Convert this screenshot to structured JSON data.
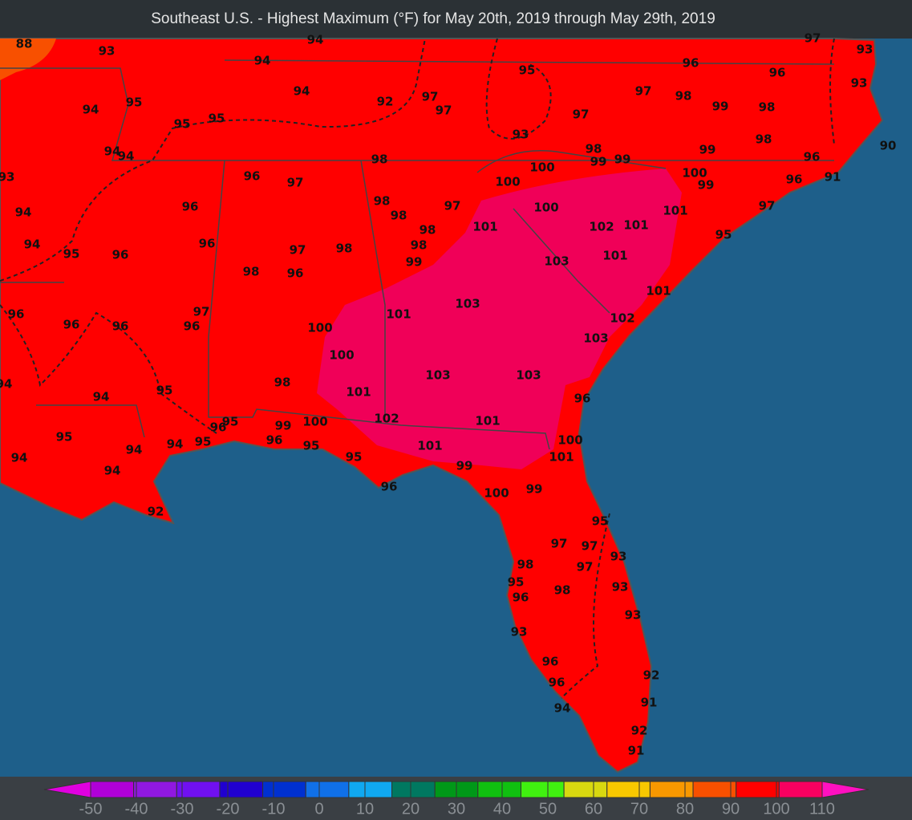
{
  "title": "Southeast U.S. - Highest Maximum (°F) for May 20th, 2019 through May 29th, 2019",
  "station_values": [
    88,
    93,
    94,
    94,
    97,
    93,
    95,
    96,
    96,
    93,
    94,
    92,
    97,
    97,
    97,
    98,
    99,
    98,
    94,
    95,
    95,
    95,
    97,
    93,
    98,
    90,
    94,
    94,
    98,
    98,
    99,
    99,
    99,
    96,
    93,
    96,
    97,
    100,
    100,
    100,
    99,
    96,
    91,
    94,
    96,
    98,
    98,
    97,
    100,
    101,
    97,
    94,
    95,
    96,
    96,
    97,
    98,
    98,
    101,
    102,
    101,
    95,
    98,
    99,
    103,
    101,
    98,
    96,
    101,
    96,
    96,
    96,
    97,
    96,
    100,
    101,
    103,
    102,
    100,
    103,
    94,
    94,
    95,
    98,
    101,
    103,
    103,
    96,
    95,
    96,
    95,
    99,
    100,
    102,
    101,
    94,
    94,
    94,
    95,
    96,
    95,
    101,
    100,
    101,
    94,
    95,
    99,
    96,
    100,
    99,
    92,
    95,
    97,
    97,
    93,
    98,
    97,
    95,
    93,
    98,
    96,
    93,
    93,
    96,
    92,
    96,
    91,
    94,
    92,
    91
  ],
  "colorbar": {
    "ticks": [
      -50,
      -40,
      -30,
      -20,
      -10,
      0,
      10,
      20,
      30,
      40,
      50,
      60,
      70,
      80,
      90,
      100,
      110
    ],
    "colors": [
      "#b000d8",
      "#9018e0",
      "#7010f0",
      "#2000d0",
      "#0030d0",
      "#1070e8",
      "#10a8f0",
      "#007860",
      "#009818",
      "#10c010",
      "#40f010",
      "#d8d810",
      "#f8c800",
      "#f89800",
      "#f85000",
      "#ff0000",
      "#f80060"
    ],
    "under_color": "#e000e0",
    "over_color": "#ff10c0"
  }
}
